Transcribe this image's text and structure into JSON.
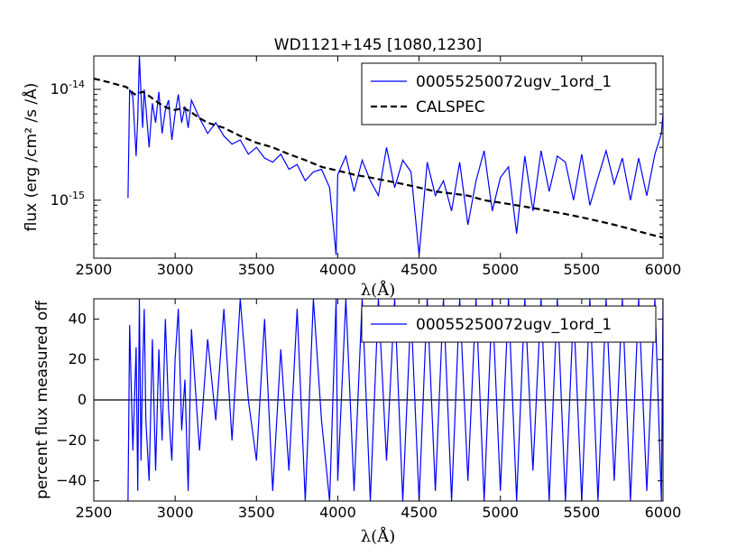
{
  "chart_data": [
    {
      "type": "line",
      "title": "WD1121+145 [1080,1230]",
      "xlabel": "λ(Å)",
      "ylabel": "flux (erg /cm² /s /Å)",
      "xlim": [
        2500,
        6000
      ],
      "ylim": [
        3e-16,
        2e-14
      ],
      "yscale": "log",
      "x_ticks": [
        "2500",
        "3000",
        "3500",
        "4000",
        "4500",
        "5000",
        "5500",
        "6000"
      ],
      "y_ticks": [
        {
          "value": 1e-14,
          "base": "10",
          "exp": "-14"
        },
        {
          "value": 1e-15,
          "base": "10",
          "exp": "-15"
        }
      ],
      "legend_position": "top-right",
      "series": [
        {
          "name": "00055250072ugv_1ord_1",
          "color": "#0000ff",
          "style": "solid",
          "x": [
            2710,
            2720,
            2740,
            2760,
            2770,
            2780,
            2790,
            2800,
            2810,
            2820,
            2840,
            2860,
            2880,
            2900,
            2920,
            2940,
            2960,
            2980,
            3000,
            3020,
            3040,
            3060,
            3080,
            3100,
            3150,
            3200,
            3250,
            3300,
            3350,
            3400,
            3450,
            3500,
            3550,
            3600,
            3650,
            3700,
            3750,
            3800,
            3850,
            3900,
            3950,
            3990,
            4000,
            4050,
            4100,
            4150,
            4200,
            4250,
            4300,
            4350,
            4400,
            4450,
            4500,
            4550,
            4600,
            4650,
            4700,
            4750,
            4800,
            4850,
            4900,
            4950,
            5000,
            5050,
            5100,
            5150,
            5200,
            5250,
            5300,
            5350,
            5400,
            5450,
            5500,
            5550,
            5600,
            5650,
            5700,
            5750,
            5800,
            5850,
            5900,
            5950,
            5990,
            6000
          ],
          "y": [
            1.05e-15,
            1e-14,
            8.5e-15,
            2.5e-15,
            5.5e-15,
            2e-14,
            9e-15,
            4.5e-15,
            1e-14,
            7e-15,
            3e-15,
            7.5e-15,
            5e-15,
            9.5e-15,
            4e-15,
            6.5e-15,
            8e-15,
            3.5e-15,
            6e-15,
            9e-15,
            5e-15,
            7e-15,
            4.5e-15,
            8e-15,
            5.5e-15,
            4e-15,
            5e-15,
            3.8e-15,
            3.2e-15,
            3.5e-15,
            2.6e-15,
            3e-15,
            2.4e-15,
            2.2e-15,
            2.6e-15,
            1.9e-15,
            2.1e-15,
            1.5e-15,
            1.8e-15,
            1.9e-15,
            1.3e-15,
            3.2e-16,
            1.7e-15,
            2.5e-15,
            1.2e-15,
            2.3e-15,
            1.5e-15,
            1.1e-15,
            3e-15,
            1.3e-15,
            2.3e-15,
            1.8e-15,
            3.2e-16,
            2.2e-15,
            1.1e-15,
            1.5e-15,
            8e-16,
            2.2e-15,
            6e-16,
            1.5e-15,
            2.8e-15,
            8e-16,
            1.6e-15,
            2e-15,
            5e-16,
            2.5e-15,
            8e-16,
            2.8e-15,
            1.2e-15,
            2.5e-15,
            2.2e-15,
            1e-15,
            2.6e-15,
            9e-16,
            1.6e-15,
            2.8e-15,
            1.4e-15,
            2.4e-15,
            1e-15,
            2.4e-15,
            1.1e-15,
            2.6e-15,
            4e-15,
            6e-15
          ]
        },
        {
          "name": "CALSPEC",
          "color": "#000000",
          "style": "dashed",
          "x": [
            2500,
            2550,
            2600,
            2650,
            2700,
            2750,
            2800,
            2850,
            2900,
            2950,
            3000,
            3050,
            3100,
            3150,
            3200,
            3300,
            3400,
            3500,
            3600,
            3700,
            3800,
            3900,
            4000,
            4100,
            4200,
            4300,
            4400,
            4500,
            4600,
            4700,
            4800,
            4900,
            5000,
            5100,
            5200,
            5300,
            5400,
            5500,
            5600,
            5700,
            5800,
            5900,
            6000
          ],
          "y": [
            1.25e-14,
            1.2e-14,
            1.15e-14,
            1.1e-14,
            1.05e-14,
            9e-15,
            9.5e-15,
            8.5e-15,
            7.5e-15,
            6.8e-15,
            6.5e-15,
            6.8e-15,
            6.2e-15,
            5.5e-15,
            5e-15,
            4.5e-15,
            3.8e-15,
            3.3e-15,
            3e-15,
            2.6e-15,
            2.3e-15,
            2e-15,
            1.85e-15,
            1.7e-15,
            1.6e-15,
            1.5e-15,
            1.4e-15,
            1.3e-15,
            1.2e-15,
            1.15e-15,
            1.1e-15,
            1e-15,
            9.5e-16,
            9e-16,
            8.5e-16,
            8e-16,
            7.5e-16,
            7e-16,
            6.5e-16,
            6e-16,
            5.5e-16,
            5e-16,
            4.6e-16
          ]
        }
      ]
    },
    {
      "type": "line",
      "title": "",
      "xlabel": "λ(Å)",
      "ylabel": "percent flux measured off",
      "xlim": [
        2500,
        6000
      ],
      "ylim": [
        -50,
        50
      ],
      "x_ticks": [
        "2500",
        "3000",
        "3500",
        "4000",
        "4500",
        "5000",
        "5500",
        "6000"
      ],
      "y_ticks": [
        "40",
        "20",
        "0",
        "−20",
        "−40"
      ],
      "y_tick_values": [
        40,
        20,
        0,
        -20,
        -40
      ],
      "legend_position": "top-right",
      "hline": 0,
      "series": [
        {
          "name": "00055250072ugv_1ord_1",
          "color": "#0000ff",
          "style": "solid",
          "x": [
            2710,
            2720,
            2740,
            2760,
            2770,
            2780,
            2790,
            2800,
            2810,
            2820,
            2840,
            2860,
            2880,
            2900,
            2920,
            2940,
            2960,
            2980,
            3000,
            3020,
            3040,
            3060,
            3080,
            3100,
            3150,
            3200,
            3250,
            3300,
            3350,
            3400,
            3450,
            3500,
            3550,
            3600,
            3650,
            3700,
            3750,
            3800,
            3850,
            3900,
            3950,
            3990,
            4000,
            4050,
            4100,
            4150,
            4200,
            4250,
            4300,
            4350,
            4400,
            4450,
            4500,
            4550,
            4600,
            4650,
            4700,
            4750,
            4800,
            4850,
            4900,
            4950,
            5000,
            5050,
            5100,
            5150,
            5200,
            5250,
            5300,
            5350,
            5400,
            5450,
            5500,
            5550,
            5600,
            5650,
            5700,
            5750,
            5800,
            5850,
            5900,
            5950,
            5990,
            6000
          ],
          "y": [
            -50,
            37,
            -25,
            26,
            -45,
            50,
            -30,
            15,
            45,
            -10,
            -40,
            30,
            -35,
            25,
            -20,
            40,
            -5,
            -30,
            20,
            45,
            -15,
            10,
            -45,
            35,
            -25,
            30,
            -10,
            45,
            -20,
            50,
            0,
            -30,
            40,
            -45,
            25,
            -35,
            45,
            -50,
            50,
            -10,
            -50,
            50,
            -40,
            50,
            -45,
            50,
            -50,
            50,
            -30,
            50,
            -50,
            45,
            -50,
            50,
            -45,
            50,
            -50,
            50,
            -40,
            50,
            -50,
            50,
            -45,
            50,
            -50,
            50,
            -35,
            50,
            -50,
            50,
            -50,
            45,
            -50,
            50,
            -50,
            50,
            -40,
            50,
            -50,
            50,
            -45,
            50,
            -50,
            50
          ]
        }
      ]
    }
  ]
}
